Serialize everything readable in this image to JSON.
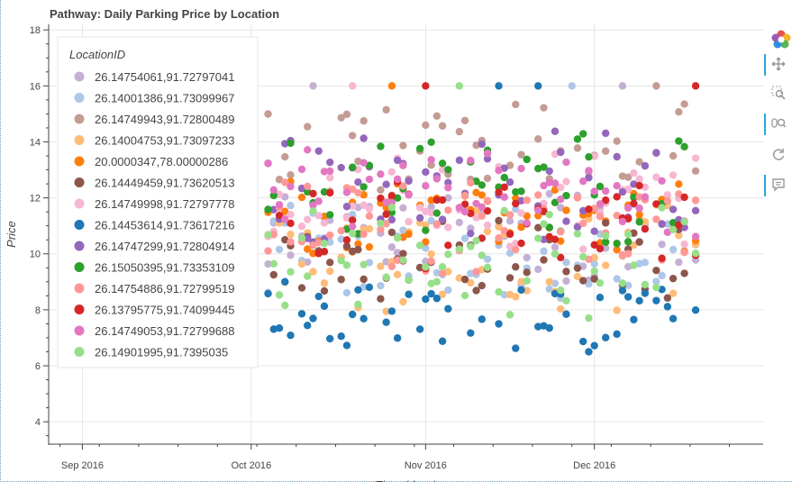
{
  "chart_data": {
    "type": "scatter",
    "title": "Pathway: Daily Parking Price by Location",
    "xlabel": "Time (days)",
    "ylabel": "Price",
    "x_type": "datetime",
    "x_range": [
      "2016-08-26",
      "2016-12-31"
    ],
    "ylim": [
      3.2,
      18.2
    ],
    "x_ticks": [
      {
        "label": "Sep 2016",
        "date": "2016-09-01"
      },
      {
        "label": "Oct 2016",
        "date": "2016-10-01"
      },
      {
        "label": "Nov 2016",
        "date": "2016-11-01"
      },
      {
        "label": "Dec 2016",
        "date": "2016-12-01"
      }
    ],
    "y_ticks": [
      4,
      6,
      8,
      10,
      12,
      14,
      16,
      18
    ],
    "grid": true,
    "legend": {
      "title": "LocationID",
      "placement": "top-left",
      "entries": [
        {
          "name": "26.14754061,91.72797041",
          "color": "#c5b0d5"
        },
        {
          "name": "26.14001386,91.73099967",
          "color": "#aec7e8"
        },
        {
          "name": "26.14749943,91.72800489",
          "color": "#c49c94"
        },
        {
          "name": "26.14004753,91.73097233",
          "color": "#ffbb78"
        },
        {
          "name": "20.0000347,78.00000286",
          "color": "#ff7f0e"
        },
        {
          "name": "26.14449459,91.73620513",
          "color": "#8c564b"
        },
        {
          "name": "26.14749998,91.72797778",
          "color": "#f7b6d2"
        },
        {
          "name": "26.14453614,91.73617216",
          "color": "#1f77b4"
        },
        {
          "name": "26.14747299,91.72804914",
          "color": "#9467bd"
        },
        {
          "name": "26.15050395,91.73353109",
          "color": "#2ca02c"
        },
        {
          "name": "26.14754886,91.72799519",
          "color": "#ff9896"
        },
        {
          "name": "26.13795775,91.74099445",
          "color": "#d62728"
        },
        {
          "name": "26.14749053,91.72799688",
          "color": "#e377c2"
        },
        {
          "name": "26.14901995,91.7395035",
          "color": "#98df8a"
        }
      ]
    },
    "series": [
      {
        "name": "26.14754061,91.72797041",
        "color": "#c5b0d5",
        "date_start": "2016-10-04",
        "date_end": "2016-12-19",
        "base": 10.6,
        "spread": 1.5,
        "seed": 11
      },
      {
        "name": "26.14001386,91.73099967",
        "color": "#aec7e8",
        "date_start": "2016-10-04",
        "date_end": "2016-12-19",
        "base": 10.0,
        "spread": 1.5,
        "seed": 12
      },
      {
        "name": "26.14749943,91.72800489",
        "color": "#c49c94",
        "date_start": "2016-10-04",
        "date_end": "2016-12-19",
        "base": 13.8,
        "spread": 1.5,
        "seed": 13
      },
      {
        "name": "26.14004753,91.73097233",
        "color": "#ffbb78",
        "date_start": "2016-10-04",
        "date_end": "2016-12-19",
        "base": 9.8,
        "spread": 1.6,
        "seed": 14
      },
      {
        "name": "20.0000347,78.00000286",
        "color": "#ff7f0e",
        "date_start": "2016-10-04",
        "date_end": "2016-12-19",
        "base": 11.2,
        "spread": 1.2,
        "seed": 15
      },
      {
        "name": "26.14449459,91.73620513",
        "color": "#8c564b",
        "date_start": "2016-10-04",
        "date_end": "2016-12-19",
        "base": 9.8,
        "spread": 1.5,
        "seed": 16
      },
      {
        "name": "26.14749998,91.72797778",
        "color": "#f7b6d2",
        "date_start": "2016-10-04",
        "date_end": "2016-12-19",
        "base": 12.0,
        "spread": 1.5,
        "seed": 17
      },
      {
        "name": "26.14453614,91.73617216",
        "color": "#1f77b4",
        "date_start": "2016-10-04",
        "date_end": "2016-12-19",
        "base": 7.7,
        "spread": 1.1,
        "seed": 18
      },
      {
        "name": "26.14747299,91.72804914",
        "color": "#9467bd",
        "date_start": "2016-10-04",
        "date_end": "2016-12-19",
        "base": 12.4,
        "spread": 1.6,
        "seed": 19
      },
      {
        "name": "26.15050395,91.73353109",
        "color": "#2ca02c",
        "date_start": "2016-10-04",
        "date_end": "2016-12-19",
        "base": 12.2,
        "spread": 1.7,
        "seed": 20
      },
      {
        "name": "26.14754886,91.72799519",
        "color": "#ff9896",
        "date_start": "2016-10-04",
        "date_end": "2016-12-19",
        "base": 11.0,
        "spread": 1.4,
        "seed": 21
      },
      {
        "name": "26.13795775,91.74099445",
        "color": "#d62728",
        "date_start": "2016-10-04",
        "date_end": "2016-12-19",
        "base": 11.0,
        "spread": 1.5,
        "seed": 22
      },
      {
        "name": "26.14749053,91.72799688",
        "color": "#e377c2",
        "date_start": "2016-10-04",
        "date_end": "2016-12-19",
        "base": 12.2,
        "spread": 1.3,
        "seed": 23
      },
      {
        "name": "26.14901995,91.7395035",
        "color": "#98df8a",
        "date_start": "2016-10-04",
        "date_end": "2016-12-19",
        "base": 9.8,
        "spread": 1.7,
        "seed": 24
      }
    ],
    "price_16_points": [
      {
        "date": "2016-10-12",
        "y": 16,
        "color": "#c5b0d5"
      },
      {
        "date": "2016-10-19",
        "y": 16,
        "color": "#f7b6d2"
      },
      {
        "date": "2016-10-26",
        "y": 16,
        "color": "#ff7f0e"
      },
      {
        "date": "2016-11-01",
        "y": 16,
        "color": "#d62728"
      },
      {
        "date": "2016-11-07",
        "y": 16,
        "color": "#98df8a"
      },
      {
        "date": "2016-11-14",
        "y": 16,
        "color": "#1f77b4"
      },
      {
        "date": "2016-11-21",
        "y": 16,
        "color": "#1f77b4"
      },
      {
        "date": "2016-11-27",
        "y": 16,
        "color": "#aec7e8"
      },
      {
        "date": "2016-12-06",
        "y": 16,
        "color": "#c5b0d5"
      },
      {
        "date": "2016-12-12",
        "y": 16,
        "color": "#c49c94"
      },
      {
        "date": "2016-12-19",
        "y": 16,
        "color": "#d62728"
      }
    ]
  },
  "toolbar": {
    "items": [
      {
        "name": "bokeh-logo-icon"
      },
      {
        "name": "pan-icon"
      },
      {
        "name": "box-zoom-icon"
      },
      {
        "name": "wheel-zoom-icon"
      },
      {
        "name": "reset-icon"
      },
      {
        "name": "hover-icon"
      }
    ]
  }
}
